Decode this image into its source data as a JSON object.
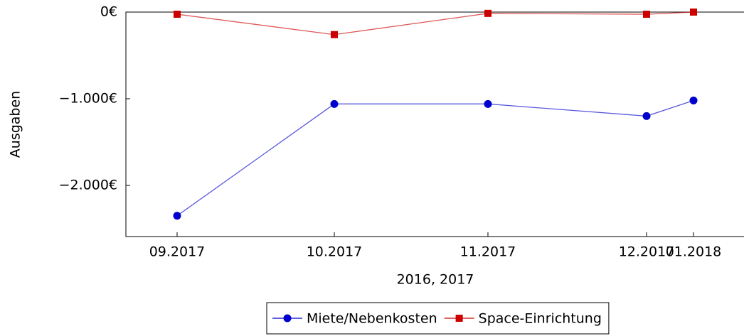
{
  "chart_data": {
    "type": "line",
    "x": [
      "09.2017",
      "10.2017",
      "11.2017",
      "12.2017",
      "01.2018"
    ],
    "series": [
      {
        "name": "Miete/Nebenkosten",
        "color": "#0000cc",
        "marker": "circle",
        "values": [
          -2350,
          -1060,
          -1060,
          -1200,
          -1020
        ]
      },
      {
        "name": "Space-Einrichtung",
        "color": "#cc0000",
        "marker": "square",
        "values": [
          -25,
          -260,
          -15,
          -25,
          0
        ]
      }
    ],
    "ylim": [
      -2590,
      0
    ],
    "yticks": [
      {
        "value": 0,
        "label": "0€"
      },
      {
        "value": -1000,
        "label": "−1.000€"
      },
      {
        "value": -2000,
        "label": "−2.000€"
      }
    ],
    "xlabel": "2016, 2017",
    "ylabel": "Ausgaben",
    "legend": "bottom",
    "grid": false
  }
}
